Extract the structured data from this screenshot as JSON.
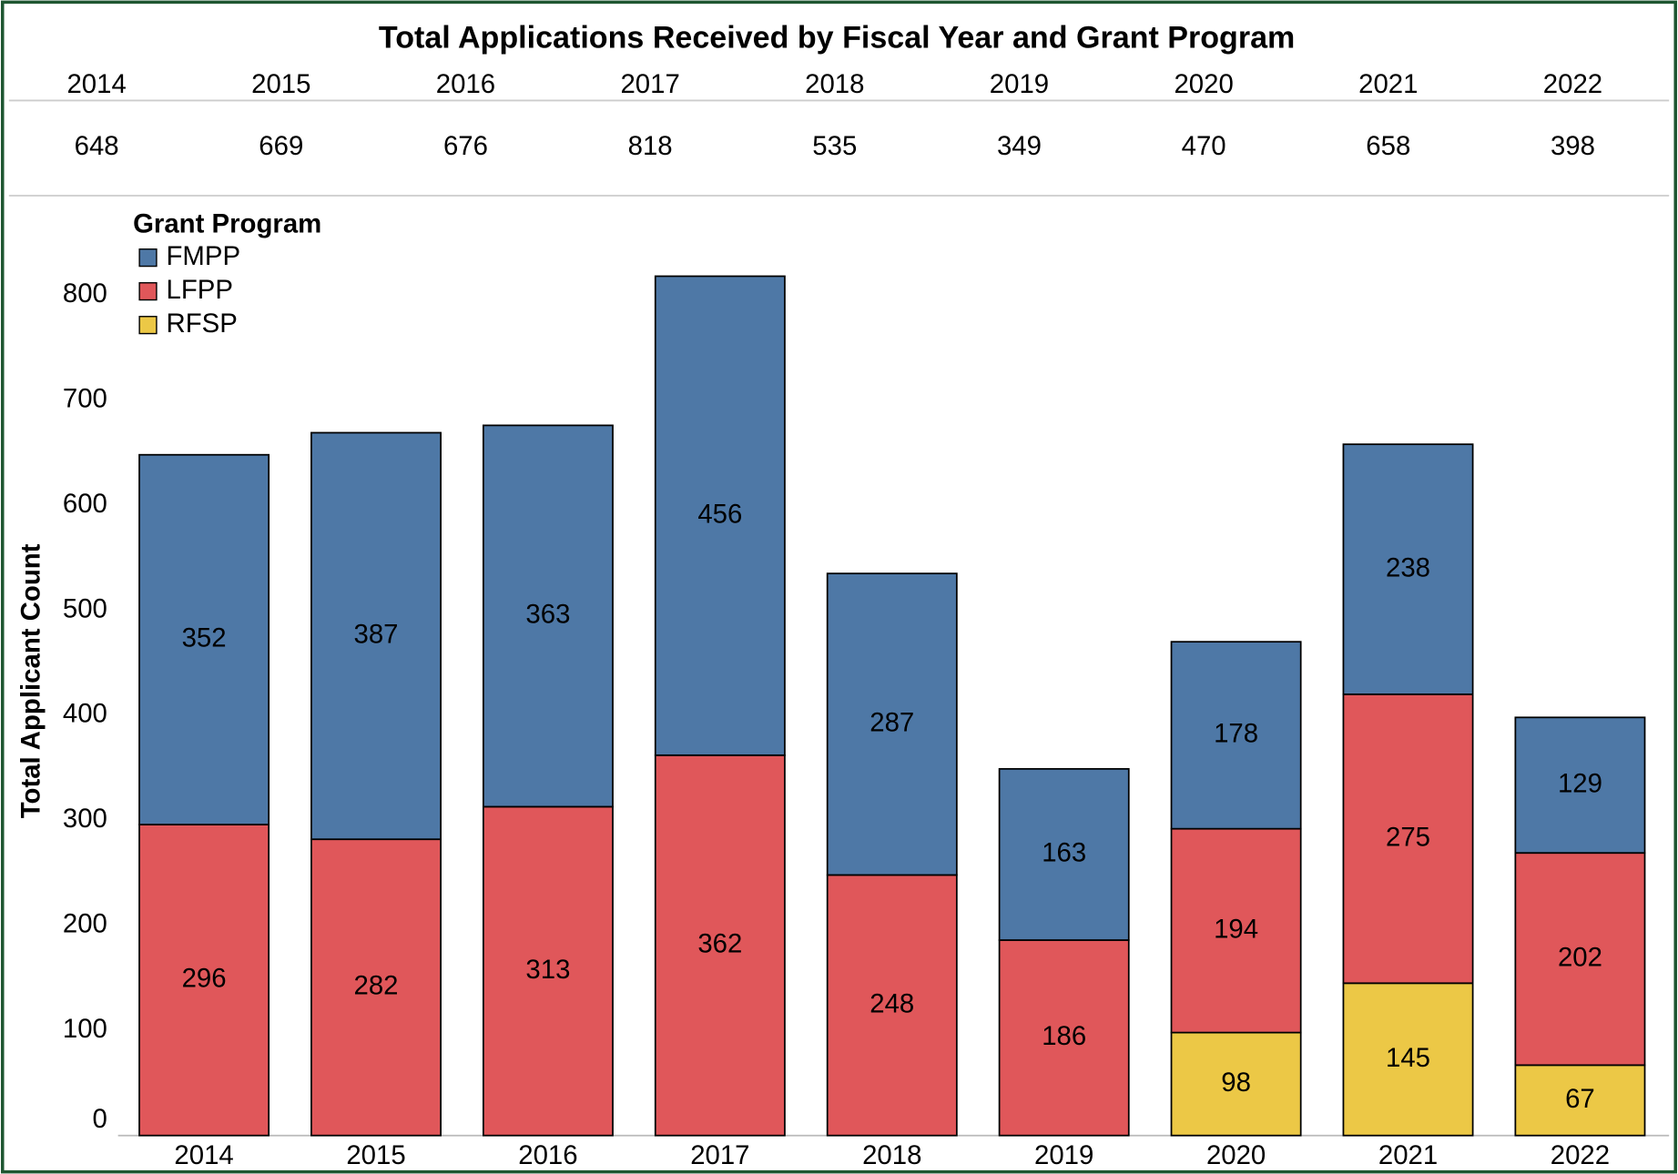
{
  "chart_data": {
    "type": "stacked_bar",
    "title": "Total Applications Received by Fiscal Year and Grant Program",
    "header_table": {
      "years": [
        "2014",
        "2015",
        "2016",
        "2017",
        "2018",
        "2019",
        "2020",
        "2021",
        "2022"
      ],
      "totals": [
        648,
        669,
        676,
        818,
        535,
        349,
        470,
        658,
        398
      ]
    },
    "y_label": "Total Applicant Count",
    "legend_title": "Grant Program",
    "legend_position": "top-left",
    "categories": [
      "2014",
      "2015",
      "2016",
      "2017",
      "2018",
      "2019",
      "2020",
      "2021",
      "2022"
    ],
    "series": [
      {
        "name": "FMPP",
        "color": "#4e78a6",
        "values": [
          352,
          387,
          363,
          456,
          287,
          163,
          178,
          238,
          129
        ]
      },
      {
        "name": "LFPP",
        "color": "#e0575a",
        "values": [
          296,
          282,
          313,
          362,
          248,
          186,
          194,
          275,
          202
        ]
      },
      {
        "name": "RFSP",
        "color": "#ecc846",
        "values": [
          null,
          null,
          null,
          null,
          null,
          null,
          98,
          145,
          67
        ]
      }
    ],
    "ylim": [
      0,
      880
    ],
    "yticks": [
      0,
      100,
      200,
      300,
      400,
      500,
      600,
      700,
      800
    ],
    "grid": false
  }
}
